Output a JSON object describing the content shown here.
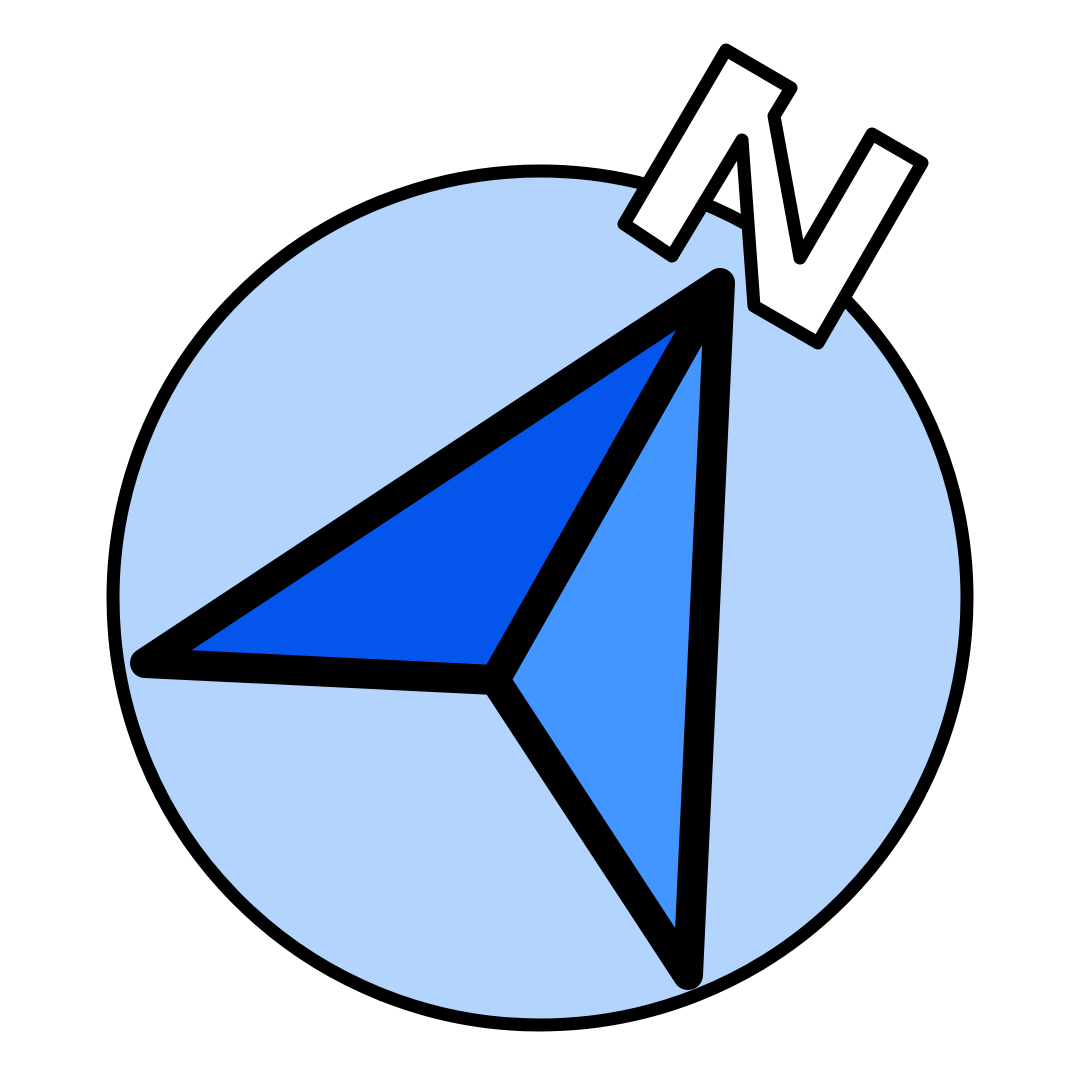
{
  "icon": {
    "name": "compass-navigation-icon",
    "letter": "N",
    "colors": {
      "background": "#ffffff",
      "circle_fill": "#b3d4fc",
      "outline": "#000000",
      "arrow_left_face": "#0455eb",
      "arrow_right_face": "#4396ff",
      "letter_fill": "#ffffff"
    }
  }
}
